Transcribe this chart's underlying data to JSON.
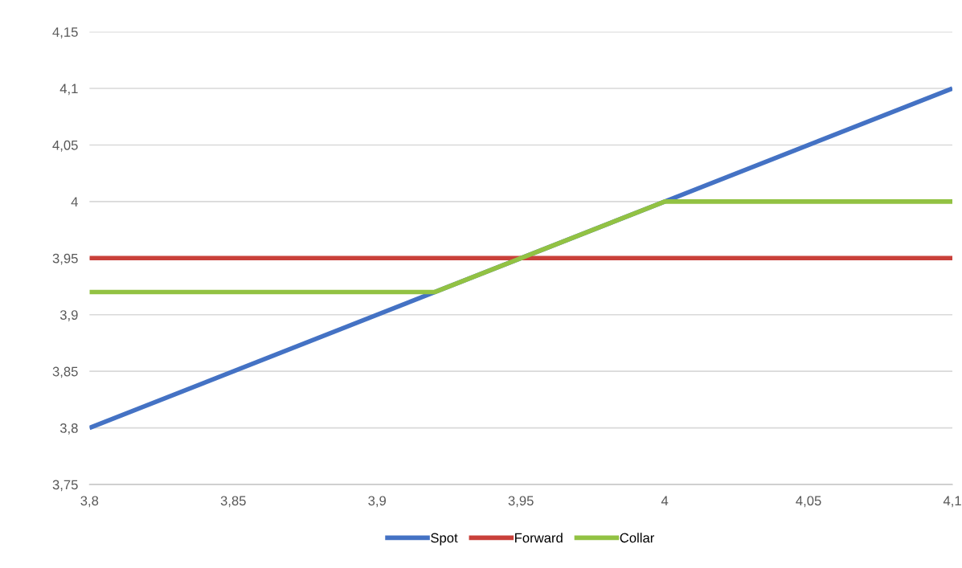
{
  "chart_data": {
    "type": "line",
    "series": [
      {
        "name": "Spot",
        "color": "#4472c4",
        "x": [
          3.8,
          4.1
        ],
        "values": [
          3.8,
          4.1
        ]
      },
      {
        "name": "Forward",
        "color": "#c9403a",
        "x": [
          3.8,
          4.1
        ],
        "values": [
          3.95,
          3.95
        ]
      },
      {
        "name": "Collar",
        "color": "#92c243",
        "x": [
          3.8,
          3.92,
          4.0,
          4.1
        ],
        "values": [
          3.92,
          3.92,
          4.0,
          4.0
        ]
      }
    ],
    "xlim": [
      3.8,
      4.1
    ],
    "xticks": [
      {
        "value": 3.8,
        "label": "3,8"
      },
      {
        "value": 3.85,
        "label": "3,85"
      },
      {
        "value": 3.9,
        "label": "3,9"
      },
      {
        "value": 3.95,
        "label": "3,95"
      },
      {
        "value": 4.0,
        "label": "4"
      },
      {
        "value": 4.05,
        "label": "4,05"
      },
      {
        "value": 4.1,
        "label": "4,1"
      }
    ],
    "ylim": [
      3.75,
      4.15
    ],
    "yticks": [
      {
        "value": 3.75,
        "label": "3,75"
      },
      {
        "value": 3.8,
        "label": "3,8"
      },
      {
        "value": 3.85,
        "label": "3,85"
      },
      {
        "value": 3.9,
        "label": "3,9"
      },
      {
        "value": 3.95,
        "label": "3,95"
      },
      {
        "value": 4.0,
        "label": "4"
      },
      {
        "value": 4.05,
        "label": "4,05"
      },
      {
        "value": 4.1,
        "label": "4,1"
      },
      {
        "value": 4.15,
        "label": "4,15"
      }
    ],
    "grid": "y",
    "legend": "bottom",
    "marker": "none",
    "line_style": "solid"
  }
}
